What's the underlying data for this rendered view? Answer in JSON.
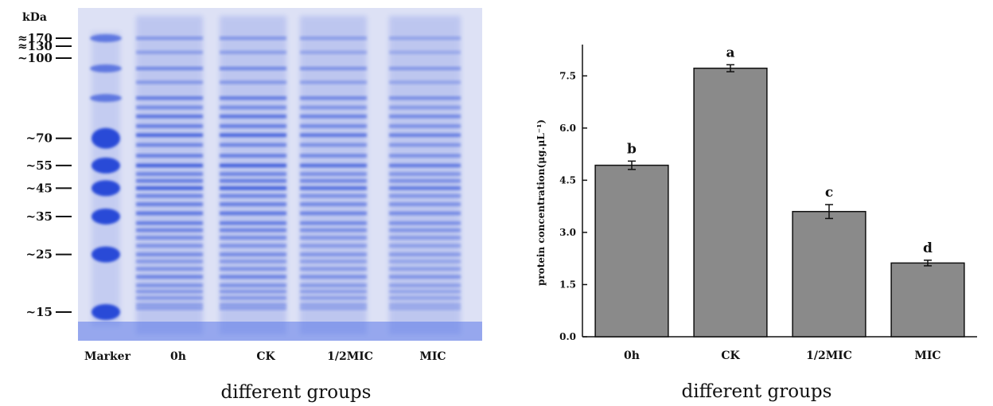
{
  "gel": {
    "unit_label": "kDa",
    "markers": [
      {
        "label": "≈170",
        "kda": 170
      },
      {
        "label": "≈130",
        "kda": 130
      },
      {
        "label": "~100",
        "kda": 100
      },
      {
        "label": "~70",
        "kda": 70
      },
      {
        "label": "~55",
        "kda": 55
      },
      {
        "label": "~45",
        "kda": 45
      },
      {
        "label": "~35",
        "kda": 35
      },
      {
        "label": "~25",
        "kda": 25
      },
      {
        "label": "~15",
        "kda": 15
      }
    ],
    "lanes": [
      "Marker",
      "0h",
      "CK",
      "1/2MIC",
      "MIC"
    ],
    "xlabel": "different groups",
    "stain_color": "#1f3fd6",
    "background_color": "#d9ddf4"
  },
  "chart_data": {
    "type": "bar",
    "categories": [
      "0h",
      "CK",
      "1/2MIC",
      "MIC"
    ],
    "values": [
      4.93,
      7.72,
      3.6,
      2.12
    ],
    "errors": [
      0.12,
      0.1,
      0.2,
      0.08
    ],
    "significance": [
      "b",
      "a",
      "c",
      "d"
    ],
    "xlabel": "different groups",
    "ylabel": "protein concentration(μg.μL⁻¹)",
    "ylim": [
      0,
      8.4
    ],
    "yticks": [
      "0.0",
      "1.5",
      "3.0",
      "4.5",
      "6.0",
      "7.5"
    ],
    "bar_color": "#8a8a8a",
    "grid": false
  }
}
